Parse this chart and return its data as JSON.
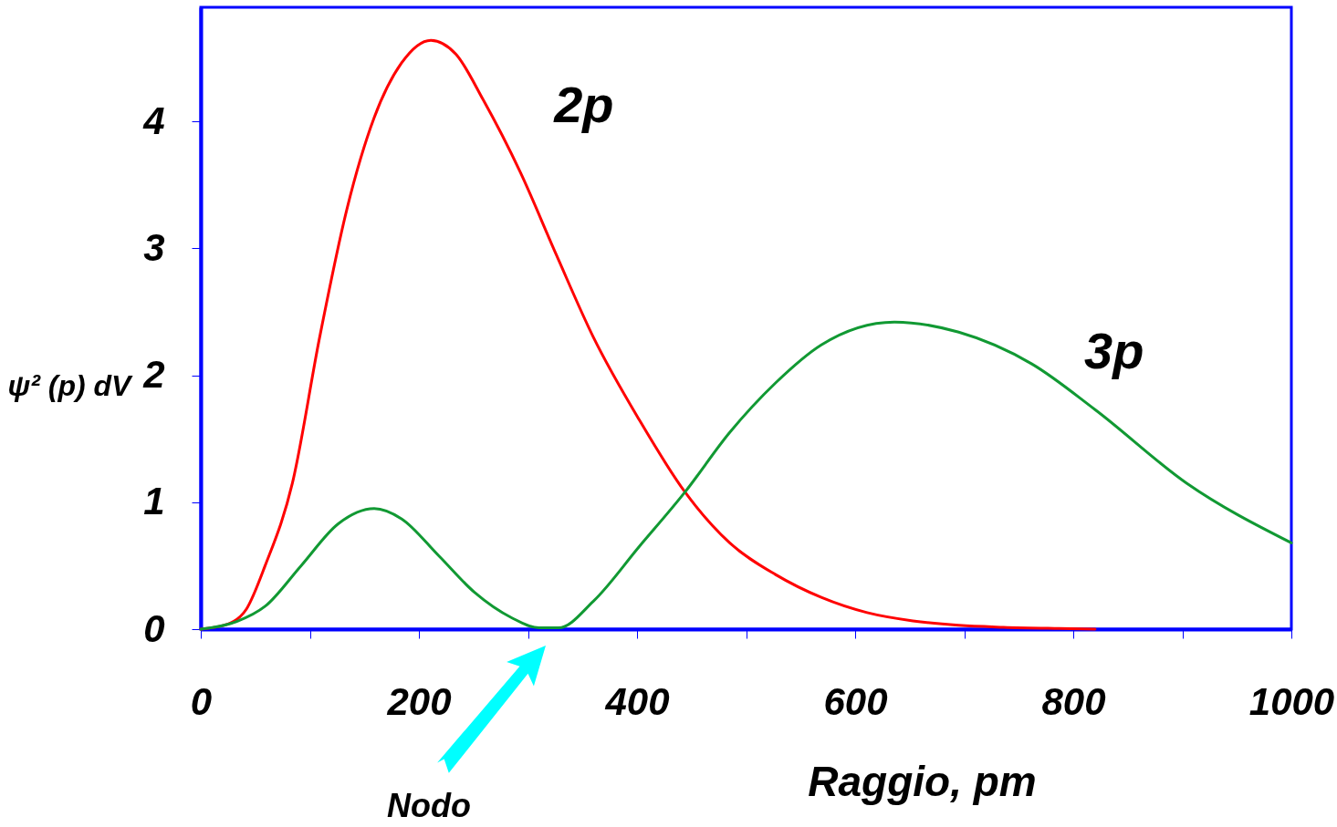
{
  "chart_data": {
    "type": "line",
    "xlabel": "Raggio, pm",
    "ylabel": "ψ² (p) dV",
    "xlim": [
      0,
      1000
    ],
    "ylim": [
      0,
      4.9
    ],
    "xticks": [
      0,
      {
        "value": 100,
        "label": null
      },
      200,
      {
        "value": 300,
        "label": null
      },
      400,
      {
        "value": 500,
        "label": null
      },
      600,
      {
        "value": 700,
        "label": null
      },
      800,
      {
        "value": 900,
        "label": null
      },
      1000
    ],
    "yticks": [
      0,
      1,
      2,
      3,
      4
    ],
    "series": [
      {
        "name": "2p",
        "color": "#ff0000",
        "x": [
          0,
          25,
          42,
          59,
          84,
          109,
          134,
          159,
          184,
          211,
          234,
          259,
          293,
          326,
          360,
          402,
          444,
          485,
          527,
          569,
          611,
          653,
          695,
          736,
          787,
          820
        ],
        "values": [
          0,
          0.04,
          0.16,
          0.5,
          1.15,
          2.3,
          3.31,
          4.03,
          4.46,
          4.64,
          4.53,
          4.17,
          3.6,
          2.95,
          2.3,
          1.65,
          1.08,
          0.68,
          0.43,
          0.25,
          0.13,
          0.065,
          0.03,
          0.015,
          0.005,
          0
        ]
      },
      {
        "name": "3p",
        "color": "#119933",
        "x": [
          0,
          33,
          59,
          92,
          126,
          159,
          184,
          218,
          251,
          285,
          310,
          328,
          360,
          402,
          444,
          485,
          527,
          569,
          636,
          695,
          762,
          820,
          904,
          1000
        ],
        "values": [
          0,
          0.06,
          0.18,
          0.5,
          0.83,
          0.95,
          0.87,
          0.58,
          0.29,
          0.09,
          0.01,
          0.01,
          0.22,
          0.65,
          1.08,
          1.55,
          1.94,
          2.24,
          2.42,
          2.34,
          2.09,
          1.73,
          1.15,
          0.68
        ]
      }
    ],
    "annotations": [
      "Nodo"
    ],
    "grid": false
  }
}
